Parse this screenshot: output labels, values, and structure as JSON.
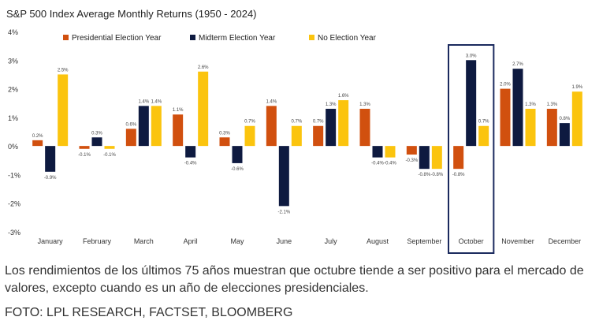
{
  "chart_data": {
    "type": "bar",
    "title": "S&P 500 Index Average Monthly Returns (1950 - 2024)",
    "categories": [
      "January",
      "February",
      "March",
      "April",
      "May",
      "June",
      "July",
      "August",
      "September",
      "October",
      "November",
      "December"
    ],
    "series": [
      {
        "name": "Presidential Election Year",
        "color": "#d1500f",
        "values": [
          0.2,
          -0.1,
          0.6,
          1.1,
          0.3,
          1.4,
          0.7,
          1.3,
          -0.3,
          -0.8,
          2.0,
          1.3
        ],
        "labels": [
          "0.2%",
          "-0.1%",
          "0.6%",
          "1.1%",
          "0.3%",
          "1.4%",
          "0.7%",
          "1.3%",
          "-0.3%",
          "-0.8%",
          "2.0%",
          "1.3%"
        ]
      },
      {
        "name": "Midterm Election Year",
        "color": "#0e1a40",
        "values": [
          -0.9,
          0.3,
          1.4,
          -0.4,
          -0.6,
          -2.1,
          1.3,
          -0.4,
          -0.8,
          3.0,
          2.7,
          0.8
        ],
        "labels": [
          "-0.9%",
          "0.3%",
          "1.4%",
          "-0.4%",
          "-0.6%",
          "-2.1%",
          "1.3%",
          "-0.4%",
          "-0.8%",
          "3.0%",
          "2.7%",
          "0.8%"
        ]
      },
      {
        "name": "No Election Year",
        "color": "#fbc40e",
        "values": [
          2.5,
          -0.1,
          1.4,
          2.6,
          0.7,
          0.7,
          1.6,
          -0.4,
          -0.8,
          0.7,
          1.3,
          1.9
        ],
        "labels": [
          "2.5%",
          "-0.1%",
          "1.4%",
          "2.6%",
          "0.7%",
          "0.7%",
          "1.6%",
          "-0.4%",
          "-0.8%",
          "0.7%",
          "1.3%",
          "1.9%"
        ]
      }
    ],
    "yticks": [
      4,
      3,
      2,
      1,
      0,
      -1,
      -2,
      -3
    ],
    "ytick_labels": [
      "4%",
      "3%",
      "2%",
      "1%",
      "0%",
      "-1%",
      "-2%",
      "-3%"
    ],
    "ylim": [
      -3,
      4
    ],
    "highlight_category": "October",
    "highlight_color": "#1b2a5e",
    "legend_position": "top"
  },
  "caption": "Los rendimientos de los últimos 75 años muestran que octubre tiende a ser positivo para el mercado de valores, excepto cuando es un año de elecciones presidenciales.",
  "credit": "FOTO: LPL RESEARCH, FACTSET, BLOOMBERG"
}
